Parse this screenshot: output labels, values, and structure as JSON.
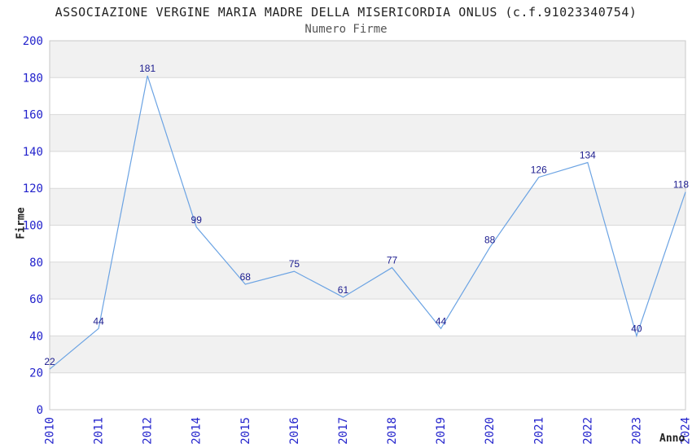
{
  "header": {
    "title": "ASSOCIAZIONE VERGINE MARIA MADRE DELLA MISERICORDIA ONLUS (c.f.91023340754)",
    "subtitle": "Numero Firme"
  },
  "chart_data": {
    "type": "line",
    "title": "Numero Firme",
    "categories": [
      "2010",
      "2011",
      "2012",
      "2014",
      "2015",
      "2016",
      "2017",
      "2018",
      "2019",
      "2020",
      "2021",
      "2022",
      "2023",
      "2024"
    ],
    "values": [
      22,
      44,
      181,
      99,
      68,
      75,
      61,
      77,
      44,
      88,
      126,
      134,
      40,
      118
    ],
    "xlabel": "Anno",
    "ylabel": "Firme",
    "ylim": [
      0,
      200
    ],
    "yticks": [
      0,
      20,
      40,
      60,
      80,
      100,
      120,
      140,
      160,
      180,
      200
    ],
    "grid": "horizontal-lines-with-alternating-bands",
    "legend": "none",
    "colors": {
      "line": "#6BA3E3",
      "data_label": "#1B1B8E",
      "tick_label": "#2323CC",
      "band": "#F1F1F1",
      "grid": "#D9D9D9",
      "spine": "#C8C8C8",
      "title": "#222222",
      "subtitle": "#555555",
      "axis_label": "#222222",
      "background": "#FFFFFF"
    }
  }
}
